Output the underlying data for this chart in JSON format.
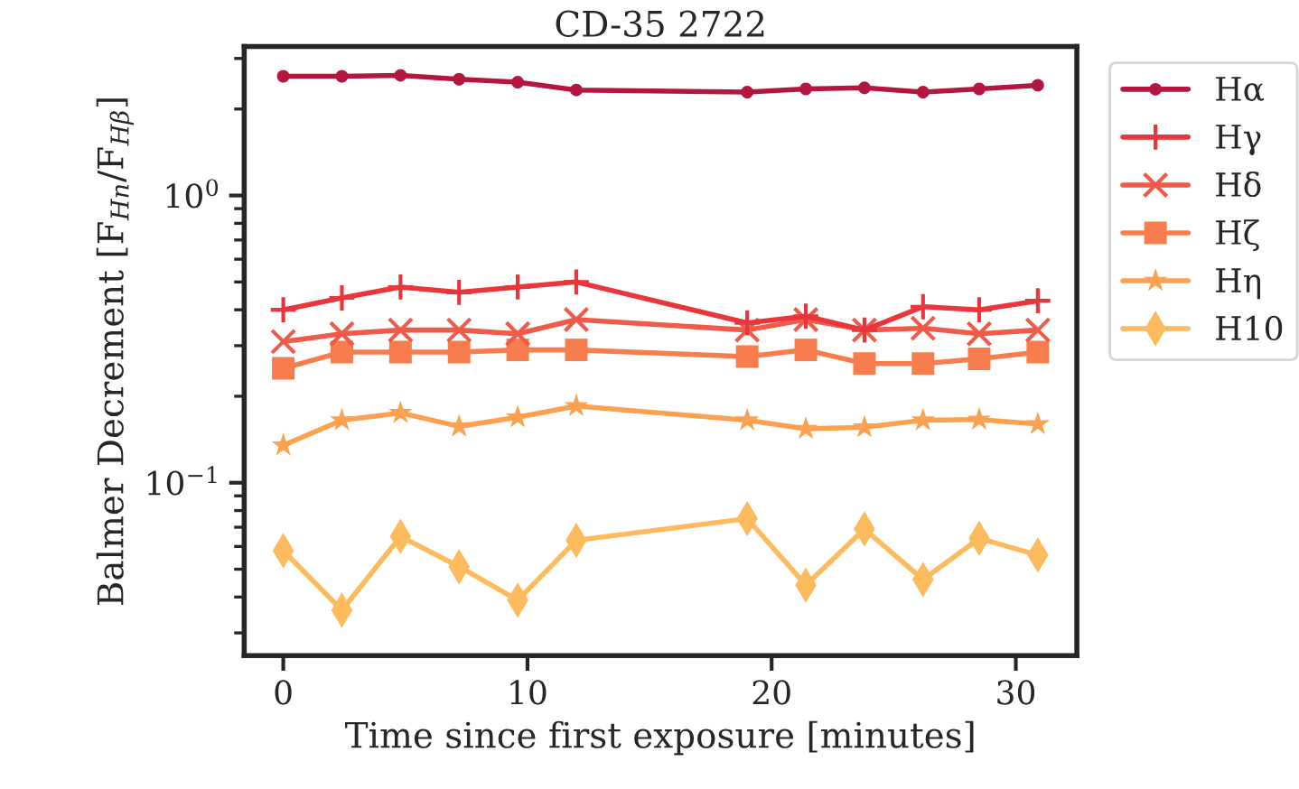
{
  "chart_data": {
    "type": "line",
    "title": "CD-35 2722",
    "xlabel": "Time since first exposure [minutes]",
    "ylabel": "Balmer Decrement [F$_{Hn}$/F$_{Hβ}$]",
    "x": [
      0,
      2.4,
      4.8,
      7.2,
      9.6,
      12.0,
      19.0,
      21.4,
      23.8,
      26.2,
      28.5,
      30.9
    ],
    "series": [
      {
        "name": "Hα",
        "color": "#b3173f",
        "marker": "circle",
        "values": [
          2.6,
          2.6,
          2.62,
          2.54,
          2.48,
          2.33,
          2.29,
          2.35,
          2.37,
          2.29,
          2.35,
          2.42
        ]
      },
      {
        "name": "Hγ",
        "color": "#e8363c",
        "marker": "plus",
        "values": [
          0.4,
          0.44,
          0.48,
          0.46,
          0.48,
          0.5,
          0.36,
          0.38,
          0.34,
          0.41,
          0.4,
          0.43
        ]
      },
      {
        "name": "Hδ",
        "color": "#f05a48",
        "marker": "cross",
        "values": [
          0.31,
          0.33,
          0.34,
          0.34,
          0.33,
          0.37,
          0.34,
          0.37,
          0.34,
          0.345,
          0.33,
          0.34
        ]
      },
      {
        "name": "Hζ",
        "color": "#f77e4c",
        "marker": "square",
        "values": [
          0.25,
          0.285,
          0.285,
          0.285,
          0.29,
          0.29,
          0.275,
          0.29,
          0.26,
          0.26,
          0.27,
          0.285
        ]
      },
      {
        "name": "Hη",
        "color": "#fba14f",
        "marker": "star",
        "values": [
          0.135,
          0.165,
          0.175,
          0.157,
          0.169,
          0.185,
          0.165,
          0.154,
          0.156,
          0.165,
          0.166,
          0.16
        ]
      },
      {
        "name": "H10",
        "color": "#fdbb5e",
        "marker": "diamond",
        "values": [
          0.058,
          0.036,
          0.065,
          0.051,
          0.039,
          0.063,
          0.075,
          0.044,
          0.069,
          0.046,
          0.064,
          0.056
        ]
      }
    ],
    "log": "y",
    "xlim": [
      -1.6,
      32.5
    ],
    "ylim": [
      0.025,
      3.3
    ],
    "xticks": [
      0,
      10,
      20,
      30
    ],
    "yticks": [
      {
        "value": 0.1,
        "label": "10$^{−1}$"
      },
      {
        "value": 1,
        "label": "10$^{0}$"
      }
    ],
    "grid": false,
    "legend": "right",
    "line_style": "solid"
  }
}
